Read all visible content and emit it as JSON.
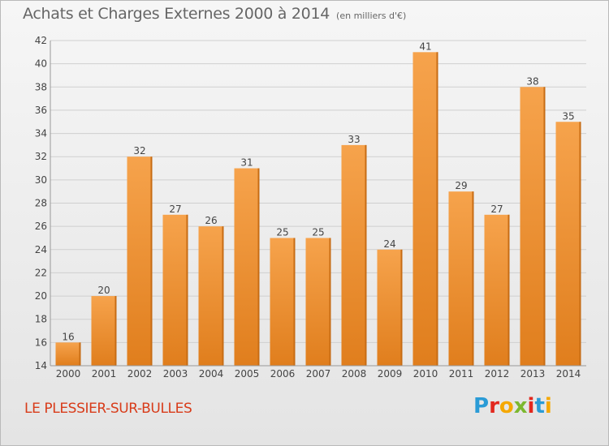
{
  "header": {
    "title": "Achats et Charges Externes 2000 à 2014",
    "unit": "(en milliers d'€)"
  },
  "footer": {
    "commune": "LE PLESSIER-SUR-BULLES",
    "logo_text": "Proxiti"
  },
  "colors": {
    "bar_top": "#f6a34c",
    "bar_bottom": "#e07e1d",
    "bar_side": "#c76c14",
    "grid": "#cfcfcf",
    "axis": "#999999",
    "commune_text": "#d83c1a",
    "logo": [
      "#2a9bd6",
      "#e2281e",
      "#f5a800",
      "#7cb82f",
      "#e2281e",
      "#2a9bd6",
      "#f5a800"
    ]
  },
  "chart_data": {
    "type": "bar",
    "title": "Achats et Charges Externes 2000 à 2014",
    "subtitle": "(en milliers d'€)",
    "xlabel": "",
    "ylabel": "",
    "categories": [
      "2000",
      "2001",
      "2002",
      "2003",
      "2004",
      "2005",
      "2006",
      "2007",
      "2008",
      "2009",
      "2010",
      "2011",
      "2012",
      "2013",
      "2014"
    ],
    "values": [
      16,
      20,
      32,
      27,
      26,
      31,
      25,
      25,
      33,
      24,
      41,
      29,
      27,
      38,
      35
    ],
    "ylim": [
      14,
      42
    ],
    "yticks": [
      14,
      16,
      18,
      20,
      22,
      24,
      26,
      28,
      30,
      32,
      34,
      36,
      38,
      40,
      42
    ],
    "grid": true,
    "data_labels": true
  }
}
